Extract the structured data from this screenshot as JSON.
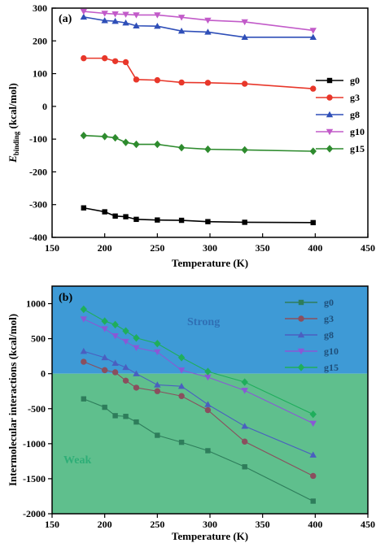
{
  "colors": {
    "strong_region": "#3e9ad6",
    "weak_region": "#5fbf8d"
  },
  "chart_data": [
    {
      "type": "line",
      "panel_label": "(a)",
      "xlabel": "Temperature (K)",
      "ylabel": "E",
      "ylabel_sub": "binding",
      "ylabel_unit": " (kcal/mol)",
      "xlim": [
        150,
        450
      ],
      "ylim": [
        -400,
        300
      ],
      "xticks": [
        150,
        200,
        250,
        300,
        350,
        400,
        450
      ],
      "yticks": [
        -400,
        -300,
        -200,
        -100,
        0,
        100,
        200,
        300
      ],
      "grid": false,
      "legend_position": "right-middle",
      "series": [
        {
          "name": "g0",
          "color": "#000000",
          "marker": "square",
          "x": [
            180,
            200,
            210,
            220,
            230,
            250,
            273,
            298,
            333,
            398
          ],
          "y": [
            -310,
            -322,
            -335,
            -337,
            -345,
            -347,
            -348,
            -352,
            -354,
            -355
          ]
        },
        {
          "name": "g3",
          "color": "#e8372a",
          "marker": "circle",
          "x": [
            180,
            200,
            210,
            220,
            230,
            250,
            273,
            298,
            333,
            398
          ],
          "y": [
            147,
            147,
            138,
            135,
            82,
            80,
            73,
            72,
            69,
            54
          ]
        },
        {
          "name": "g8",
          "color": "#2f4fb8",
          "marker": "triangle-up",
          "x": [
            180,
            200,
            210,
            220,
            230,
            250,
            273,
            298,
            333,
            398
          ],
          "y": [
            273,
            262,
            260,
            255,
            246,
            245,
            230,
            227,
            211,
            211
          ]
        },
        {
          "name": "g10",
          "color": "#c25bc9",
          "marker": "triangle-down",
          "x": [
            180,
            200,
            210,
            220,
            230,
            250,
            273,
            298,
            333,
            398
          ],
          "y": [
            290,
            284,
            282,
            281,
            279,
            279,
            272,
            263,
            258,
            232
          ]
        },
        {
          "name": "g15",
          "color": "#2e8b2e",
          "marker": "diamond",
          "x": [
            180,
            200,
            210,
            220,
            230,
            250,
            273,
            298,
            333,
            398
          ],
          "y": [
            -89,
            -92,
            -96,
            -110,
            -116,
            -116,
            -126,
            -131,
            -133,
            -137
          ]
        }
      ]
    },
    {
      "type": "line",
      "panel_label": "(b)",
      "xlabel": "Temperature (K)",
      "ylabel": "Intermolecular interactions (kcal/mol)",
      "xlim": [
        150,
        450
      ],
      "ylim": [
        -2000,
        1250
      ],
      "xticks": [
        150,
        200,
        250,
        300,
        350,
        400,
        450
      ],
      "yticks": [
        -2000,
        -1500,
        -1000,
        -500,
        0,
        500,
        1000
      ],
      "grid": false,
      "legend_position": "top-right",
      "regions": {
        "above_zero": "Strong",
        "below_zero": "Weak"
      },
      "series": [
        {
          "name": "g0",
          "color": "#2e7d5b",
          "marker": "square",
          "x": [
            180,
            200,
            210,
            220,
            230,
            250,
            273,
            298,
            333,
            398
          ],
          "y": [
            -360,
            -480,
            -600,
            -610,
            -690,
            -880,
            -980,
            -1100,
            -1330,
            -1820
          ]
        },
        {
          "name": "g3",
          "color": "#8a4f5e",
          "marker": "circle",
          "x": [
            180,
            200,
            210,
            220,
            230,
            250,
            273,
            298,
            333,
            398
          ],
          "y": [
            170,
            50,
            20,
            -100,
            -200,
            -250,
            -320,
            -520,
            -970,
            -1460
          ]
        },
        {
          "name": "g8",
          "color": "#4a5fc0",
          "marker": "triangle-up",
          "x": [
            180,
            200,
            210,
            220,
            230,
            250,
            273,
            298,
            333,
            398
          ],
          "y": [
            320,
            230,
            150,
            90,
            0,
            -160,
            -180,
            -440,
            -750,
            -1160
          ]
        },
        {
          "name": "g10",
          "color": "#8a58d6",
          "marker": "triangle-down",
          "x": [
            180,
            200,
            210,
            220,
            230,
            250,
            273,
            298,
            333,
            398
          ],
          "y": [
            780,
            640,
            540,
            460,
            370,
            310,
            50,
            -50,
            -240,
            -710
          ]
        },
        {
          "name": "g15",
          "color": "#1fae5c",
          "marker": "diamond",
          "x": [
            180,
            200,
            210,
            220,
            230,
            250,
            273,
            298,
            333,
            398
          ],
          "y": [
            920,
            750,
            700,
            610,
            510,
            430,
            230,
            30,
            -120,
            -580
          ]
        }
      ]
    }
  ]
}
